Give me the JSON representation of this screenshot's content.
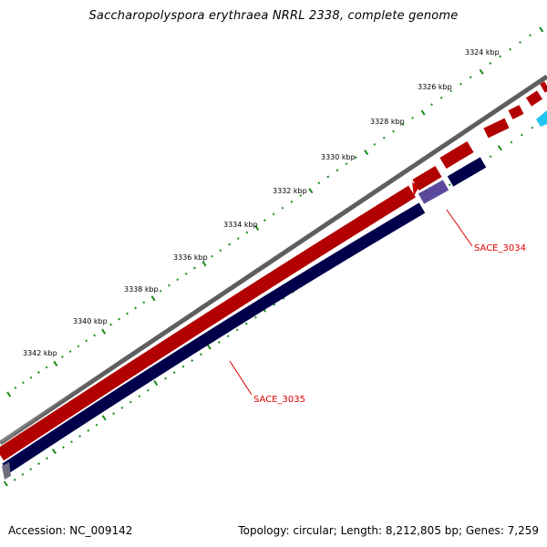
{
  "title": "Saccharopolyspora erythraea NRRL 2338, complete genome",
  "footer": {
    "accession": "Accession: NC_009142",
    "summary": "Topology: circular; Length: 8,212,805 bp; Genes: 7,259"
  },
  "scale_labels": [
    "3324 kbp",
    "3326 kbp",
    "3328 kbp",
    "3330 kbp",
    "3332 kbp",
    "3334 kbp",
    "3336 kbp",
    "3338 kbp",
    "3340 kbp",
    "3342 kbp"
  ],
  "gene_labels": {
    "sace_3034": "SACE_3034",
    "sace_3035": "SACE_3035"
  },
  "colors": {
    "forward_cds": "#ee0000",
    "reverse_cds": "#000080",
    "reverse_cds_alt": "#5b4a9c",
    "accent_cds": "#22c4f0",
    "backbone": "#7f7f7f",
    "ticks": "#1a8a1a",
    "label": "#e00000"
  }
}
